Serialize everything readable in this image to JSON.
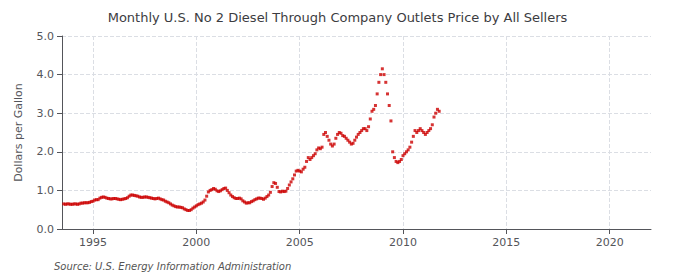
{
  "chart_data": {
    "type": "scatter",
    "title": "Monthly U.S. No 2 Diesel Through Company Outlets Price by All Sellers",
    "ylabel": "Dollars per Gallon",
    "annotation": "Source: U.S. Energy Information Administration",
    "color": "#cc0000",
    "marker": "square",
    "grid": true,
    "xlim": [
      1993.5,
      2022.0
    ],
    "ylim": [
      0.0,
      5.0
    ],
    "xticks": [
      1995,
      2000,
      2005,
      2010,
      2015,
      2020
    ],
    "yticks": [
      {
        "value": 0.0,
        "label": "0.0"
      },
      {
        "value": 1.0,
        "label": "1.0"
      },
      {
        "value": 2.0,
        "label": "2.0"
      },
      {
        "value": 3.0,
        "label": "3.0"
      },
      {
        "value": 4.0,
        "label": "4.0"
      },
      {
        "value": 5.0,
        "label": "5.0"
      }
    ],
    "x": [
      1993.583,
      1993.667,
      1993.75,
      1993.833,
      1993.917,
      1994.0,
      1994.083,
      1994.167,
      1994.25,
      1994.333,
      1994.417,
      1994.5,
      1994.583,
      1994.667,
      1994.75,
      1994.833,
      1994.917,
      1995.0,
      1995.083,
      1995.167,
      1995.25,
      1995.333,
      1995.417,
      1995.5,
      1995.583,
      1995.667,
      1995.75,
      1995.833,
      1995.917,
      1996.0,
      1996.083,
      1996.167,
      1996.25,
      1996.333,
      1996.417,
      1996.5,
      1996.583,
      1996.667,
      1996.75,
      1996.833,
      1996.917,
      1997.0,
      1997.083,
      1997.167,
      1997.25,
      1997.333,
      1997.417,
      1997.5,
      1997.583,
      1997.667,
      1997.75,
      1997.833,
      1997.917,
      1998.0,
      1998.083,
      1998.167,
      1998.25,
      1998.333,
      1998.417,
      1998.5,
      1998.583,
      1998.667,
      1998.75,
      1998.833,
      1998.917,
      1999.0,
      1999.083,
      1999.167,
      1999.25,
      1999.333,
      1999.417,
      1999.5,
      1999.583,
      1999.667,
      1999.75,
      1999.833,
      1999.917,
      2000.0,
      2000.083,
      2000.167,
      2000.25,
      2000.333,
      2000.417,
      2000.5,
      2000.583,
      2000.667,
      2000.75,
      2000.833,
      2000.917,
      2001.0,
      2001.083,
      2001.167,
      2001.25,
      2001.333,
      2001.417,
      2001.5,
      2001.583,
      2001.667,
      2001.75,
      2001.833,
      2001.917,
      2002.0,
      2002.083,
      2002.167,
      2002.25,
      2002.333,
      2002.417,
      2002.5,
      2002.583,
      2002.667,
      2002.75,
      2002.833,
      2002.917,
      2003.0,
      2003.083,
      2003.167,
      2003.25,
      2003.333,
      2003.417,
      2003.5,
      2003.583,
      2003.667,
      2003.75,
      2003.833,
      2003.917,
      2004.0,
      2004.083,
      2004.167,
      2004.25,
      2004.333,
      2004.417,
      2004.5,
      2004.583,
      2004.667,
      2004.75,
      2004.833,
      2004.917,
      2005.0,
      2005.083,
      2005.167,
      2005.25,
      2005.333,
      2005.417,
      2005.5,
      2005.583,
      2005.667,
      2005.75,
      2005.833,
      2005.917,
      2006.0,
      2006.083,
      2006.167,
      2006.25,
      2006.333,
      2006.417,
      2006.5,
      2006.583,
      2006.667,
      2006.75,
      2006.833,
      2006.917,
      2007.0,
      2007.083,
      2007.167,
      2007.25,
      2007.333,
      2007.417,
      2007.5,
      2007.583,
      2007.667,
      2007.75,
      2007.833,
      2007.917,
      2008.0,
      2008.083,
      2008.167,
      2008.25,
      2008.333,
      2008.417,
      2008.5,
      2008.583,
      2008.667,
      2008.75,
      2008.833,
      2008.917,
      2009.0,
      2009.083,
      2009.167,
      2009.25,
      2009.333,
      2009.417,
      2009.5,
      2009.583,
      2009.667,
      2009.75,
      2009.833,
      2009.917,
      2010.0,
      2010.083,
      2010.167,
      2010.25,
      2010.333,
      2010.417,
      2010.5,
      2010.583,
      2010.667,
      2010.75,
      2010.833,
      2010.917,
      2011.0,
      2011.083,
      2011.167,
      2011.25,
      2011.333,
      2011.417,
      2011.5,
      2011.583,
      2011.667,
      2011.75
    ],
    "values": [
      0.65,
      0.64,
      0.65,
      0.65,
      0.64,
      0.64,
      0.65,
      0.65,
      0.64,
      0.65,
      0.67,
      0.67,
      0.68,
      0.68,
      0.68,
      0.69,
      0.71,
      0.72,
      0.75,
      0.76,
      0.76,
      0.8,
      0.82,
      0.83,
      0.82,
      0.8,
      0.79,
      0.78,
      0.78,
      0.79,
      0.79,
      0.78,
      0.77,
      0.76,
      0.77,
      0.78,
      0.79,
      0.81,
      0.85,
      0.88,
      0.88,
      0.87,
      0.86,
      0.85,
      0.83,
      0.82,
      0.82,
      0.83,
      0.83,
      0.82,
      0.81,
      0.8,
      0.79,
      0.78,
      0.79,
      0.8,
      0.78,
      0.76,
      0.75,
      0.72,
      0.7,
      0.68,
      0.65,
      0.62,
      0.6,
      0.58,
      0.57,
      0.57,
      0.56,
      0.55,
      0.52,
      0.5,
      0.48,
      0.48,
      0.5,
      0.54,
      0.57,
      0.6,
      0.63,
      0.65,
      0.67,
      0.7,
      0.75,
      0.85,
      0.96,
      1.0,
      1.02,
      1.05,
      1.03,
      0.99,
      0.97,
      0.99,
      1.02,
      1.05,
      1.06,
      1.0,
      0.94,
      0.88,
      0.84,
      0.81,
      0.79,
      0.79,
      0.8,
      0.78,
      0.73,
      0.7,
      0.67,
      0.68,
      0.68,
      0.71,
      0.73,
      0.76,
      0.78,
      0.8,
      0.8,
      0.79,
      0.77,
      0.8,
      0.84,
      0.88,
      0.95,
      1.1,
      1.2,
      1.18,
      1.08,
      0.97,
      0.96,
      0.98,
      0.97,
      0.98,
      1.05,
      1.14,
      1.22,
      1.3,
      1.4,
      1.5,
      1.52,
      1.5,
      1.48,
      1.55,
      1.6,
      1.75,
      1.85,
      1.8,
      1.85,
      1.9,
      1.95,
      2.05,
      2.1,
      2.08,
      2.12,
      2.45,
      2.5,
      2.4,
      2.3,
      2.2,
      2.15,
      2.2,
      2.35,
      2.45,
      2.5,
      2.48,
      2.42,
      2.4,
      2.35,
      2.3,
      2.25,
      2.2,
      2.22,
      2.3,
      2.38,
      2.45,
      2.5,
      2.55,
      2.6,
      2.6,
      2.55,
      2.65,
      2.85,
      3.05,
      3.1,
      3.2,
      3.5,
      3.8,
      4.0,
      4.15,
      4.0,
      3.8,
      3.5,
      3.2,
      2.8,
      2.0,
      1.85,
      1.75,
      1.72,
      1.75,
      1.8,
      1.9,
      1.95,
      2.0,
      2.05,
      2.12,
      2.25,
      2.4,
      2.55,
      2.5,
      2.55,
      2.6,
      2.55,
      2.5,
      2.45,
      2.5,
      2.55,
      2.6,
      2.7,
      2.9,
      3.0,
      3.1,
      3.05
    ]
  }
}
